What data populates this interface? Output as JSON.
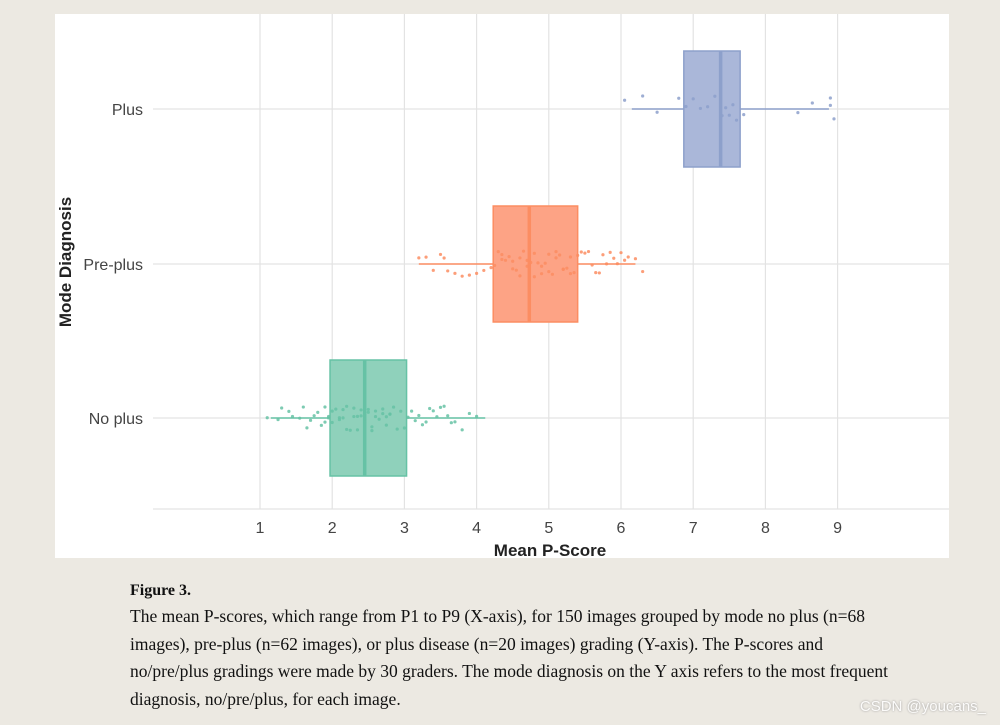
{
  "chart_data": {
    "type": "boxplot",
    "title": "",
    "xlabel": "Mean P-Score",
    "ylabel": "Mode Diagnosis",
    "xlim": [
      0.0,
      10.05
    ],
    "xticks": [
      1,
      2,
      3,
      4,
      5,
      6,
      7,
      8,
      9
    ],
    "categories": [
      "No plus",
      "Pre-plus",
      "Plus"
    ],
    "series": [
      {
        "name": "No plus",
        "color": "#66c2a5",
        "box_fill": "#8fd1bb",
        "min": 1.15,
        "q1": 1.97,
        "median": 2.45,
        "q3": 3.03,
        "max": 4.12,
        "points": [
          1.1,
          1.25,
          1.3,
          1.4,
          1.45,
          1.55,
          1.6,
          1.65,
          1.7,
          1.75,
          1.8,
          1.85,
          1.9,
          1.9,
          1.95,
          2.0,
          2.0,
          2.05,
          2.1,
          2.1,
          2.15,
          2.2,
          2.2,
          2.25,
          2.3,
          2.3,
          2.35,
          2.4,
          2.4,
          2.45,
          2.45,
          2.5,
          2.5,
          2.55,
          2.6,
          2.6,
          2.65,
          2.7,
          2.7,
          2.75,
          2.8,
          2.8,
          2.85,
          2.9,
          2.95,
          3.0,
          3.05,
          3.1,
          3.15,
          3.2,
          3.25,
          3.3,
          3.35,
          3.4,
          3.45,
          3.5,
          3.55,
          3.6,
          3.65,
          3.7,
          3.8,
          3.9,
          4.0,
          2.15,
          2.35,
          2.55,
          2.75,
          1.95
        ]
      },
      {
        "name": "Pre-plus",
        "color": "#fc8d62",
        "box_fill": "#fda385",
        "min": 3.2,
        "q1": 4.23,
        "median": 4.73,
        "q3": 5.4,
        "max": 6.2,
        "points": [
          3.2,
          3.3,
          3.4,
          3.5,
          3.55,
          3.6,
          3.7,
          3.8,
          3.9,
          4.0,
          4.1,
          4.2,
          4.25,
          4.3,
          4.35,
          4.4,
          4.45,
          4.5,
          4.5,
          4.55,
          4.6,
          4.6,
          4.65,
          4.7,
          4.7,
          4.75,
          4.8,
          4.8,
          4.85,
          4.9,
          4.9,
          4.95,
          5.0,
          5.0,
          5.05,
          5.1,
          5.1,
          5.15,
          5.2,
          5.2,
          5.25,
          5.3,
          5.3,
          5.35,
          5.4,
          5.45,
          5.5,
          5.55,
          5.6,
          5.65,
          5.7,
          5.75,
          5.8,
          5.85,
          5.9,
          5.95,
          6.0,
          6.05,
          6.1,
          6.2,
          6.3,
          4.35
        ]
      },
      {
        "name": "Plus",
        "color": "#8da0cb",
        "box_fill": "#aab7d9",
        "min": 6.15,
        "q1": 6.87,
        "median": 7.38,
        "q3": 7.65,
        "max": 8.88,
        "points": [
          6.05,
          6.3,
          6.5,
          6.8,
          6.9,
          7.0,
          7.1,
          7.2,
          7.3,
          7.4,
          7.45,
          7.5,
          7.55,
          7.6,
          7.7,
          8.45,
          8.65,
          8.9,
          8.9,
          8.95
        ]
      }
    ]
  },
  "caption": {
    "label": "Figure 3.",
    "text": "The mean P-scores, which range from P1 to P9 (X-axis), for 150 images grouped by mode no plus (n=68 images), pre-plus (n=62 images), or plus disease (n=20 images) grading (Y-axis). The P-scores and no/pre/plus gradings were made by 30 graders. The mode diagnosis on the Y axis refers to the most frequent diagnosis, no/pre/plus, for each image."
  },
  "watermark": "CSDN @youcans_"
}
